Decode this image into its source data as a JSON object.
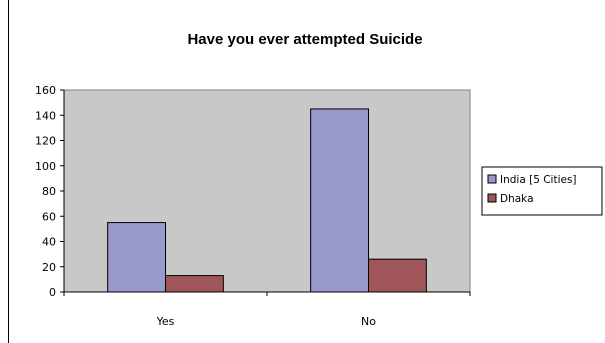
{
  "chart_data": {
    "type": "bar",
    "title": "Have you ever attempted Suicide",
    "xlabel": "",
    "ylabel": "",
    "categories": [
      "Yes",
      "No"
    ],
    "series": [
      {
        "name": "India [5 Cities]",
        "values": [
          55,
          145
        ]
      },
      {
        "name": "Dhaka",
        "values": [
          13,
          26
        ]
      }
    ],
    "ylim": [
      0,
      160
    ],
    "yticks": [
      0,
      20,
      40,
      60,
      80,
      100,
      120,
      140,
      160
    ],
    "grid": false,
    "legend": "right",
    "colors": {
      "series": [
        "#9999cc",
        "#a0555a"
      ],
      "plot_background": "#c8c8c8",
      "border": "#000000"
    }
  }
}
